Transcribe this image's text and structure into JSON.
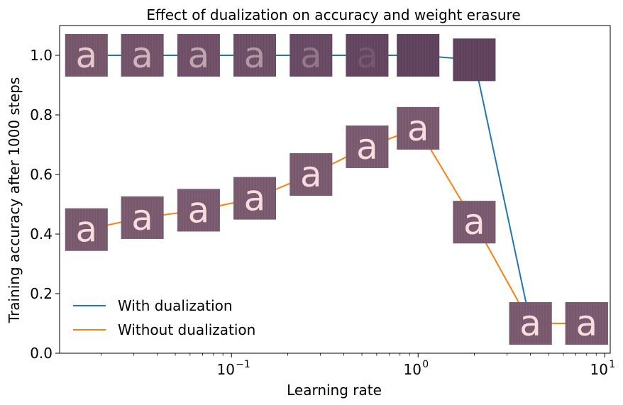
{
  "chart_data": {
    "type": "line",
    "title": "Effect of dualization on accuracy and weight erasure",
    "xlabel": "Learning rate",
    "ylabel": "Training accuracy after 1000 steps",
    "xscale": "log",
    "xlim": [
      0.012,
      10.7
    ],
    "ylim": [
      0.0,
      1.1
    ],
    "yticks": [
      "0.0",
      "0.2",
      "0.4",
      "0.6",
      "0.8",
      "1.0"
    ],
    "ytick_values": [
      0.0,
      0.2,
      0.4,
      0.6,
      0.8,
      1.0
    ],
    "xtick_values": [
      0.1,
      1,
      10
    ],
    "xtick_bases": [
      "10",
      "10",
      "10"
    ],
    "xtick_exponents": [
      "−1",
      "0",
      "1"
    ],
    "legend_position": "lower-left",
    "x": [
      0.0167,
      0.0333,
      0.0667,
      0.1333,
      0.2667,
      0.5333,
      1.0,
      2.0,
      4.0,
      8.0
    ],
    "series": [
      {
        "name": "With dualization",
        "color": "#1f77b4",
        "values": [
          1.0,
          1.0,
          1.0,
          1.0,
          1.0,
          1.0,
          1.0,
          0.985,
          0.1,
          0.1
        ],
        "glyph_visibility": [
          0.85,
          0.7,
          0.6,
          0.5,
          0.3,
          0.12,
          0.0,
          0.0,
          0.0,
          0.0
        ]
      },
      {
        "name": "Without dualization",
        "color": "#ff7f0e",
        "values": [
          0.415,
          0.455,
          0.48,
          0.52,
          0.6,
          0.693,
          0.755,
          0.44,
          0.1,
          0.1
        ],
        "glyph_visibility": [
          1,
          1,
          1,
          1,
          1,
          1,
          1,
          1,
          1,
          1
        ]
      }
    ],
    "thumbnail_glyph": "a"
  }
}
